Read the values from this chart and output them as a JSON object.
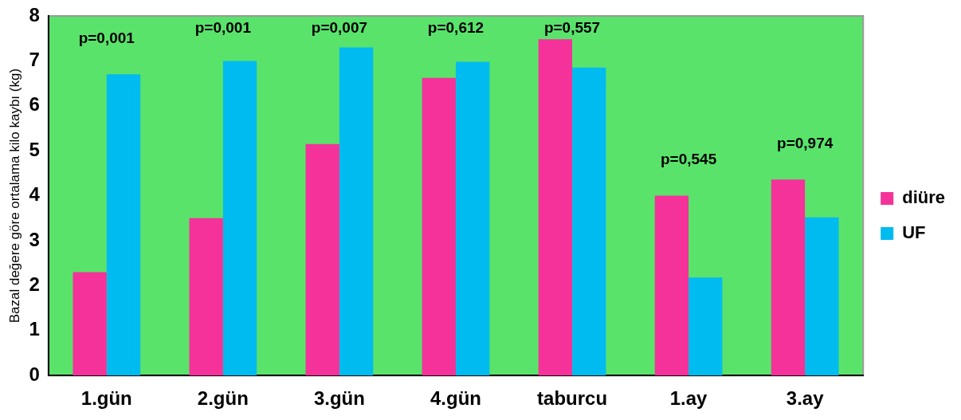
{
  "chart_data": {
    "type": "bar",
    "ylabel": "Bazal değere göre ortalama kilo kaybı (kg)",
    "categories": [
      "1.gün",
      "2.gün",
      "3.gün",
      "4.gün",
      "taburcu",
      "1.ay",
      "3.ay"
    ],
    "series": [
      {
        "name": "diüre",
        "color": "#f5329a",
        "values": [
          2.3,
          3.5,
          5.15,
          6.62,
          7.48,
          4.0,
          4.36
        ]
      },
      {
        "name": "UF",
        "color": "#00bbef",
        "values": [
          6.7,
          7.0,
          7.3,
          6.98,
          6.85,
          2.18,
          3.52
        ]
      }
    ],
    "ylim": [
      0,
      8
    ],
    "yticks": [
      0,
      1,
      2,
      3,
      4,
      5,
      6,
      7,
      8
    ],
    "grid": false,
    "legend": "right",
    "annotations": [
      "p=0,001",
      "p=0,001",
      "p=0,007",
      "p=0,612",
      "p=0,557",
      "p=0,545",
      "p=0,974"
    ]
  }
}
